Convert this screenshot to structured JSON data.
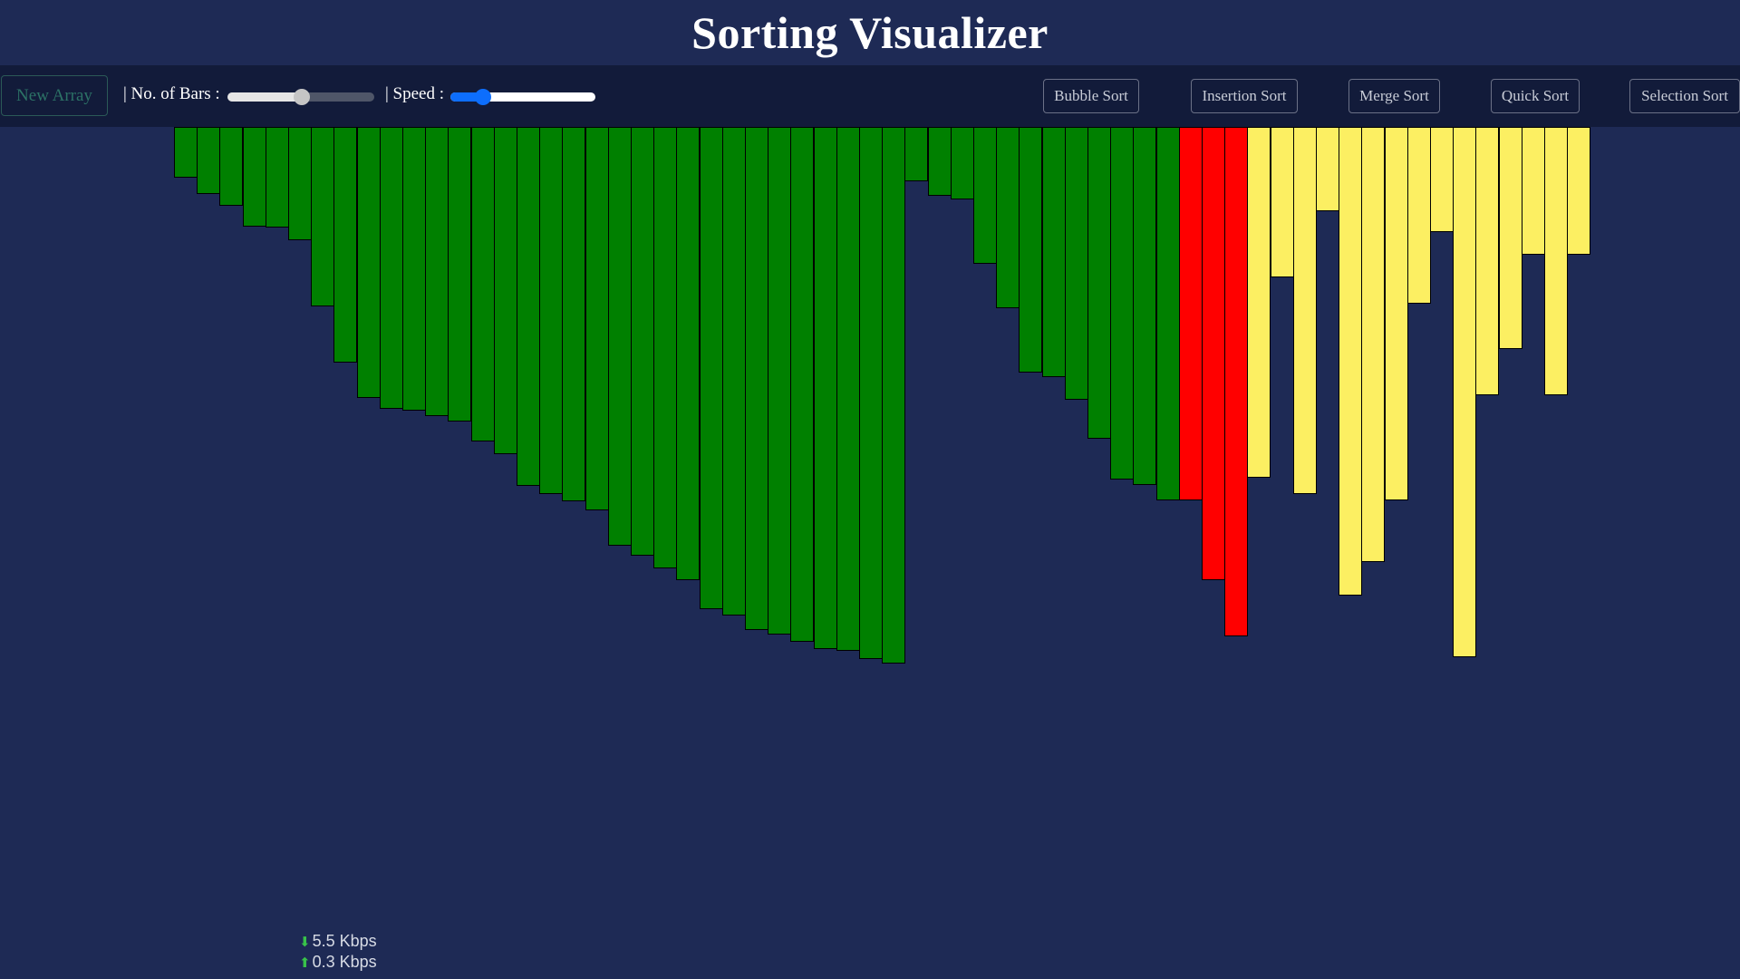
{
  "header": {
    "title": "Sorting Visualizer"
  },
  "toolbar": {
    "new_array_label": "New Array",
    "bars_label": "| No. of Bars :",
    "bars_value_fraction": 0.51,
    "speed_label": "| Speed :",
    "speed_value_fraction": 0.19,
    "sort_buttons": [
      "Bubble Sort",
      "Insertion Sort",
      "Merge Sort",
      "Quick Sort",
      "Selection Sort"
    ]
  },
  "array": {
    "values": [
      56,
      74,
      87,
      110,
      111,
      125,
      198,
      260,
      299,
      311,
      313,
      319,
      325,
      347,
      361,
      396,
      405,
      413,
      423,
      462,
      473,
      487,
      500,
      532,
      539,
      555,
      560,
      568,
      576,
      578,
      587,
      592,
      60,
      76,
      80,
      151,
      200,
      271,
      276,
      301,
      344,
      389,
      395,
      412,
      412,
      500,
      562,
      387,
      166,
      405,
      93,
      517,
      480,
      412,
      195,
      116,
      585,
      296,
      245,
      141,
      296,
      141
    ],
    "state": [
      "sorted",
      "sorted",
      "sorted",
      "sorted",
      "sorted",
      "sorted",
      "sorted",
      "sorted",
      "sorted",
      "sorted",
      "sorted",
      "sorted",
      "sorted",
      "sorted",
      "sorted",
      "sorted",
      "sorted",
      "sorted",
      "sorted",
      "sorted",
      "sorted",
      "sorted",
      "sorted",
      "sorted",
      "sorted",
      "sorted",
      "sorted",
      "sorted",
      "sorted",
      "sorted",
      "sorted",
      "sorted",
      "sorted",
      "sorted",
      "sorted",
      "sorted",
      "sorted",
      "sorted",
      "sorted",
      "sorted",
      "sorted",
      "sorted",
      "sorted",
      "sorted",
      "comparing",
      "comparing",
      "comparing",
      "unsorted",
      "unsorted",
      "unsorted",
      "unsorted",
      "unsorted",
      "unsorted",
      "unsorted",
      "unsorted",
      "unsorted",
      "unsorted",
      "unsorted",
      "unsorted",
      "unsorted",
      "unsorted",
      "unsorted"
    ]
  },
  "colors": {
    "background": "#1e2a55",
    "toolbar": "#121b3a",
    "sorted": "#008000",
    "comparing": "#ff0000",
    "unsorted": "#fcef62",
    "slider_blue": "#0d6efd"
  },
  "netspeed": {
    "down_icon": "download-arrow-icon",
    "down_value": "5.5 Kbps",
    "up_icon": "upload-arrow-icon",
    "up_value": "0.3 Kbps"
  }
}
